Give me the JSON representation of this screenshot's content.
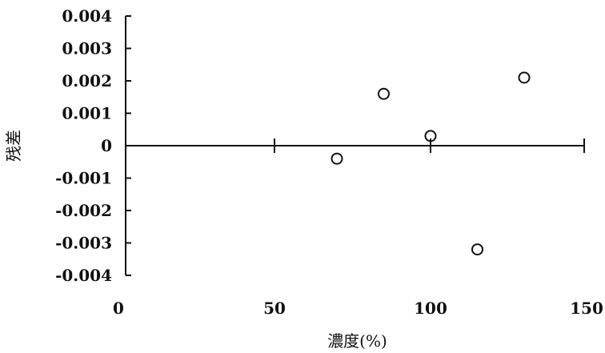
{
  "chart_data": {
    "type": "scatter",
    "xlabel": "濃度(%)",
    "ylabel": "残差",
    "xlim": [
      0,
      150
    ],
    "ylim": [
      -0.004,
      0.004
    ],
    "x_ticks": [
      0,
      50,
      100,
      150
    ],
    "y_ticks": [
      0.004,
      0.003,
      0.002,
      0.001,
      0,
      -0.001,
      -0.002,
      -0.003,
      -0.004
    ],
    "x_tick_labels": [
      "0",
      "50",
      "100",
      "150"
    ],
    "y_tick_labels": [
      "0.004",
      "0.003",
      "0.002",
      "0.001",
      "0",
      "-0.001",
      "-0.002",
      "-0.003",
      "-0.004"
    ],
    "series": [
      {
        "x": [
          70,
          85,
          100,
          115,
          130
        ],
        "y": [
          -0.0004,
          0.0016,
          0.0003,
          -0.0032,
          0.0021
        ]
      }
    ],
    "grid": false,
    "marker": "open-circle",
    "color": "#111111"
  }
}
